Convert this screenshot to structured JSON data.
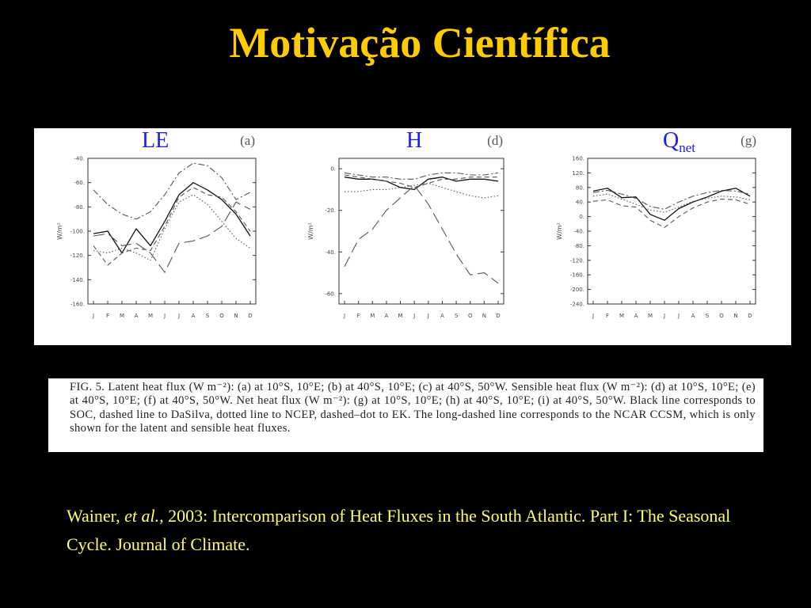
{
  "title": "Motivação Científica",
  "panels": {
    "le": {
      "heading": "LE",
      "letter": "(a)"
    },
    "h": {
      "heading": "H",
      "letter": "(d)"
    },
    "q": {
      "heading_main": "Q",
      "heading_sub": "net",
      "letter": "(g)"
    }
  },
  "caption": "FIG. 5. Latent heat flux (W m⁻²): (a) at 10°S, 10°E; (b) at 40°S, 10°E; (c) at 40°S, 50°W. Sensible heat flux (W m⁻²): (d) at 10°S, 10°E; (e) at 40°S, 10°E; (f) at 40°S, 50°W. Net heat flux (W m⁻²): (g) at 10°S, 10°E; (h) at 40°S, 10°E; (i) at 40°S, 50°W. Black line corresponds to SOC, dashed line to DaSilva, dotted line to NCEP, dashed–dot to EK. The long-dashed line corresponds to the NCAR CCSM, which is only shown for the latent and sensible heat fluxes.",
  "reference": {
    "author": "Wainer, ",
    "etal": "et al.,",
    "rest": " 2003: Intercomparison of Heat Fluxes in the South Atlantic. Part I: The Seasonal Cycle. Journal of Climate."
  },
  "chart_data": [
    {
      "type": "line",
      "panel": "(a)",
      "ylabel": "W/m²",
      "ylim": [
        -160,
        -40
      ],
      "yticks": [
        "-40.",
        "-60.",
        "-80.",
        "-100.",
        "-120.",
        "-140.",
        "-160."
      ],
      "categories": [
        "J",
        "F",
        "M",
        "A",
        "M",
        "J",
        "J",
        "A",
        "S",
        "O",
        "N",
        "D"
      ],
      "series": [
        {
          "name": "SOC",
          "values": [
            -102,
            -100,
            -118,
            -98,
            -112,
            -92,
            -70,
            -60,
            -66,
            -74,
            -86,
            -104
          ]
        },
        {
          "name": "DaSilva",
          "values": [
            -112,
            -128,
            -118,
            -114,
            -116,
            -96,
            -72,
            -64,
            -70,
            -72,
            -84,
            -100
          ]
        },
        {
          "name": "NCEP",
          "values": [
            -116,
            -118,
            -114,
            -118,
            -124,
            -98,
            -76,
            -70,
            -78,
            -92,
            -106,
            -114
          ]
        },
        {
          "name": "EK",
          "values": [
            -66,
            -78,
            -86,
            -90,
            -84,
            -70,
            -52,
            -44,
            -46,
            -56,
            -74,
            -68
          ]
        },
        {
          "name": "NCAR CCSM",
          "values": [
            -104,
            -102,
            -112,
            -110,
            -118,
            -134,
            -110,
            -108,
            -104,
            -96,
            -76,
            -82
          ]
        }
      ]
    },
    {
      "type": "line",
      "panel": "(d)",
      "ylabel": "W/m²",
      "ylim": [
        -65,
        5
      ],
      "yticks": [
        "0.",
        "-20.",
        "-40.",
        "-60."
      ],
      "categories": [
        "J",
        "F",
        "M",
        "A",
        "M",
        "J",
        "J",
        "A",
        "S",
        "O",
        "N",
        "D"
      ],
      "series": [
        {
          "name": "SOC",
          "values": [
            -4,
            -5,
            -5,
            -6,
            -9,
            -10,
            -5,
            -4,
            -6,
            -5,
            -5,
            -6
          ]
        },
        {
          "name": "DaSilva",
          "values": [
            -3,
            -4,
            -5,
            -6,
            -7,
            -9,
            -7,
            -5,
            -5,
            -4,
            -4,
            -4
          ]
        },
        {
          "name": "NCEP",
          "values": [
            -11,
            -11,
            -10,
            -10,
            -9,
            -8,
            -7,
            -9,
            -11,
            -13,
            -14,
            -13
          ]
        },
        {
          "name": "EK",
          "values": [
            -2,
            -3,
            -4,
            -4,
            -5,
            -5,
            -3,
            -2,
            -2,
            -3,
            -3,
            -2
          ]
        },
        {
          "name": "NCAR CCSM",
          "values": [
            -47,
            -34,
            -29,
            -20,
            -14,
            -8,
            -17,
            -29,
            -41,
            -51,
            -50,
            -55
          ]
        }
      ]
    },
    {
      "type": "line",
      "panel": "(g)",
      "ylabel": "W/m²",
      "ylim": [
        -240,
        160
      ],
      "yticks": [
        "160.",
        "120.",
        "80.",
        "40.",
        "0.",
        "-40.",
        "-80.",
        "-120.",
        "-160.",
        "-200.",
        "-240."
      ],
      "categories": [
        "J",
        "F",
        "M",
        "A",
        "M",
        "J",
        "J",
        "A",
        "S",
        "O",
        "N",
        "D"
      ],
      "series": [
        {
          "name": "SOC",
          "values": [
            70,
            78,
            52,
            54,
            6,
            -10,
            22,
            40,
            54,
            70,
            78,
            56
          ]
        },
        {
          "name": "DaSilva",
          "values": [
            42,
            46,
            30,
            26,
            -10,
            -30,
            0,
            24,
            40,
            48,
            46,
            34
          ]
        },
        {
          "name": "NCEP",
          "values": [
            56,
            62,
            48,
            34,
            18,
            12,
            26,
            42,
            50,
            56,
            54,
            46
          ]
        },
        {
          "name": "EK",
          "values": [
            66,
            72,
            62,
            50,
            28,
            20,
            40,
            56,
            66,
            72,
            70,
            62
          ]
        }
      ]
    }
  ]
}
